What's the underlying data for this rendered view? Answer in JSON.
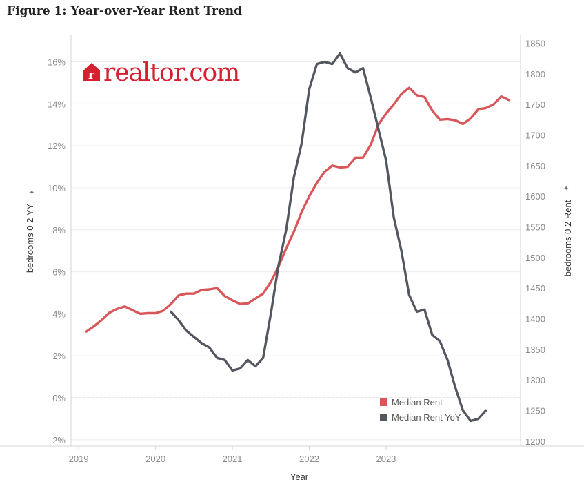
{
  "figure_title": "Figure 1: Year-over-Year Rent Trend",
  "logo": {
    "text": "realtor.com",
    "mark_letter": "r",
    "color": "#d52030",
    "icon": "house-logo-icon"
  },
  "colors": {
    "median_rent": "#d9565a",
    "median_rent_yoy": "#545760",
    "grid": "#ececec",
    "axis": "#d6d6d6"
  },
  "chart_data": {
    "type": "line",
    "title": "",
    "xlabel": "Year",
    "ylabel_left": "bedrooms 0 2 YY",
    "ylabel_right": "bedrooms 0 2 Rent",
    "x_ticks": [
      "2019",
      "2020",
      "2021",
      "2022",
      "2023"
    ],
    "y_left_ticks": [
      "-2%",
      "0%",
      "2%",
      "4%",
      "6%",
      "8%",
      "10%",
      "12%",
      "14%",
      "16%"
    ],
    "y_right_ticks": [
      "1200",
      "1250",
      "1300",
      "1350",
      "1400",
      "1450",
      "1500",
      "1550",
      "1600",
      "1650",
      "1700",
      "1750",
      "1800",
      "1850"
    ],
    "ylim_left": [
      -2.3,
      17.3
    ],
    "ylim_right": [
      1192,
      1864
    ],
    "legend": {
      "placement": "bottom-right",
      "entries": [
        "Median Rent",
        "Median Rent YoY"
      ]
    },
    "series": [
      {
        "name": "Median Rent",
        "axis": "right",
        "points": [
          [
            2019.1,
            1379
          ],
          [
            2019.2,
            1388
          ],
          [
            2019.3,
            1398
          ],
          [
            2019.4,
            1410
          ],
          [
            2019.5,
            1416
          ],
          [
            2019.6,
            1420
          ],
          [
            2019.7,
            1414
          ],
          [
            2019.8,
            1408
          ],
          [
            2019.9,
            1409
          ],
          [
            2020.0,
            1409
          ],
          [
            2020.1,
            1413
          ],
          [
            2020.2,
            1424
          ],
          [
            2020.3,
            1438
          ],
          [
            2020.4,
            1441
          ],
          [
            2020.5,
            1441
          ],
          [
            2020.6,
            1447
          ],
          [
            2020.7,
            1448
          ],
          [
            2020.8,
            1450
          ],
          [
            2020.9,
            1437
          ],
          [
            2021.0,
            1430
          ],
          [
            2021.1,
            1424
          ],
          [
            2021.2,
            1425
          ],
          [
            2021.3,
            1433
          ],
          [
            2021.4,
            1441
          ],
          [
            2021.5,
            1460
          ],
          [
            2021.6,
            1485
          ],
          [
            2021.7,
            1515
          ],
          [
            2021.8,
            1542
          ],
          [
            2021.9,
            1574
          ],
          [
            2022.0,
            1600
          ],
          [
            2022.1,
            1622
          ],
          [
            2022.2,
            1640
          ],
          [
            2022.3,
            1650
          ],
          [
            2022.4,
            1647
          ],
          [
            2022.5,
            1648
          ],
          [
            2022.6,
            1663
          ],
          [
            2022.7,
            1663
          ],
          [
            2022.8,
            1684
          ],
          [
            2022.9,
            1717
          ],
          [
            2023.0,
            1735
          ],
          [
            2023.1,
            1750
          ],
          [
            2023.2,
            1767
          ],
          [
            2023.3,
            1777
          ],
          [
            2023.4,
            1765
          ],
          [
            2023.5,
            1762
          ],
          [
            2023.6,
            1740
          ],
          [
            2023.7,
            1725
          ],
          [
            2023.8,
            1726
          ],
          [
            2023.9,
            1724
          ],
          [
            2024.0,
            1718
          ],
          [
            2024.1,
            1727
          ],
          [
            2024.2,
            1742
          ],
          [
            2024.3,
            1744
          ],
          [
            2024.4,
            1750
          ],
          [
            2024.5,
            1763
          ],
          [
            2024.6,
            1757
          ]
        ]
      },
      {
        "name": "Median Rent YoY",
        "axis": "left",
        "points": [
          [
            2020.2,
            4.1
          ],
          [
            2020.3,
            3.7
          ],
          [
            2020.4,
            3.2
          ],
          [
            2020.5,
            2.9
          ],
          [
            2020.6,
            2.6
          ],
          [
            2020.7,
            2.4
          ],
          [
            2020.8,
            1.9
          ],
          [
            2020.9,
            1.8
          ],
          [
            2021.0,
            1.3
          ],
          [
            2021.1,
            1.4
          ],
          [
            2021.2,
            1.8
          ],
          [
            2021.3,
            1.5
          ],
          [
            2021.4,
            1.9
          ],
          [
            2021.5,
            4.0
          ],
          [
            2021.6,
            6.3
          ],
          [
            2021.7,
            8.0
          ],
          [
            2021.8,
            10.5
          ],
          [
            2021.9,
            12.1
          ],
          [
            2022.0,
            14.7
          ],
          [
            2022.1,
            15.9
          ],
          [
            2022.2,
            16.0
          ],
          [
            2022.3,
            15.9
          ],
          [
            2022.4,
            16.4
          ],
          [
            2022.5,
            15.7
          ],
          [
            2022.6,
            15.5
          ],
          [
            2022.7,
            15.7
          ],
          [
            2022.8,
            14.3
          ],
          [
            2022.9,
            12.8
          ],
          [
            2023.0,
            11.3
          ],
          [
            2023.1,
            8.6
          ],
          [
            2023.2,
            7.0
          ],
          [
            2023.3,
            4.9
          ],
          [
            2023.4,
            4.1
          ],
          [
            2023.5,
            4.2
          ],
          [
            2023.6,
            3.0
          ],
          [
            2023.7,
            2.7
          ],
          [
            2023.8,
            1.8
          ],
          [
            2023.9,
            0.5
          ],
          [
            2024.0,
            -0.6
          ],
          [
            2024.1,
            -1.1
          ],
          [
            2024.2,
            -1.0
          ],
          [
            2024.3,
            -0.6
          ]
        ]
      }
    ]
  }
}
